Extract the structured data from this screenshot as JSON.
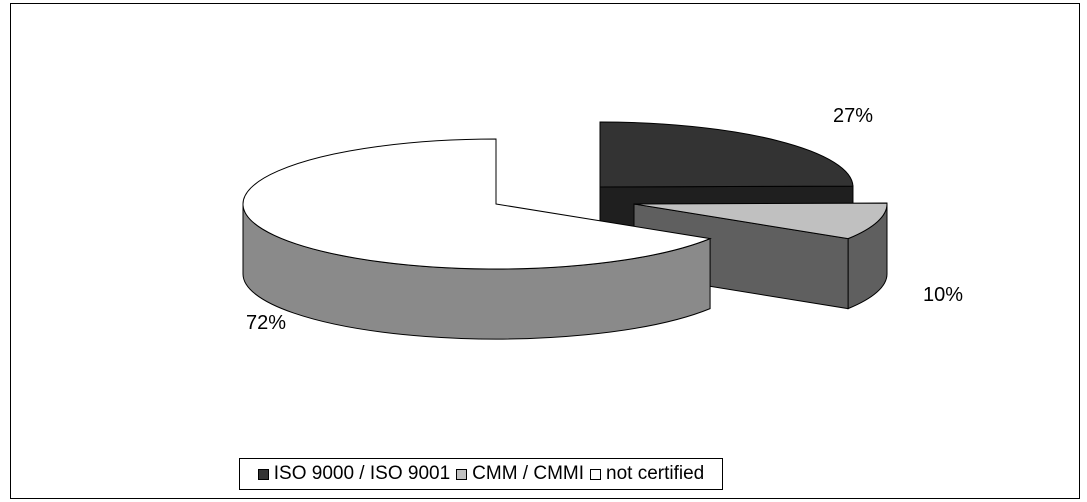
{
  "chart_data": {
    "type": "pie",
    "title": "",
    "categories": [
      "ISO 9000 / ISO 9001",
      "CMM / CMMI",
      "not certified"
    ],
    "values": [
      27,
      10,
      72
    ],
    "labels": [
      "27%",
      "10%",
      "72%"
    ],
    "exploded": true,
    "three_d": true,
    "legend_position": "bottom",
    "colors": [
      "#333333",
      "#c0c0c0",
      "#ffffff"
    ],
    "side_colors": [
      "#1f1f1f",
      "#5f5f5f",
      "#8a8a8a"
    ]
  },
  "legend": {
    "items": [
      {
        "label": "ISO 9000 / ISO 9001",
        "color": "#333333"
      },
      {
        "label": "CMM / CMMI",
        "color": "#c0c0c0"
      },
      {
        "label": "not certified",
        "color": "#ffffff"
      }
    ]
  }
}
